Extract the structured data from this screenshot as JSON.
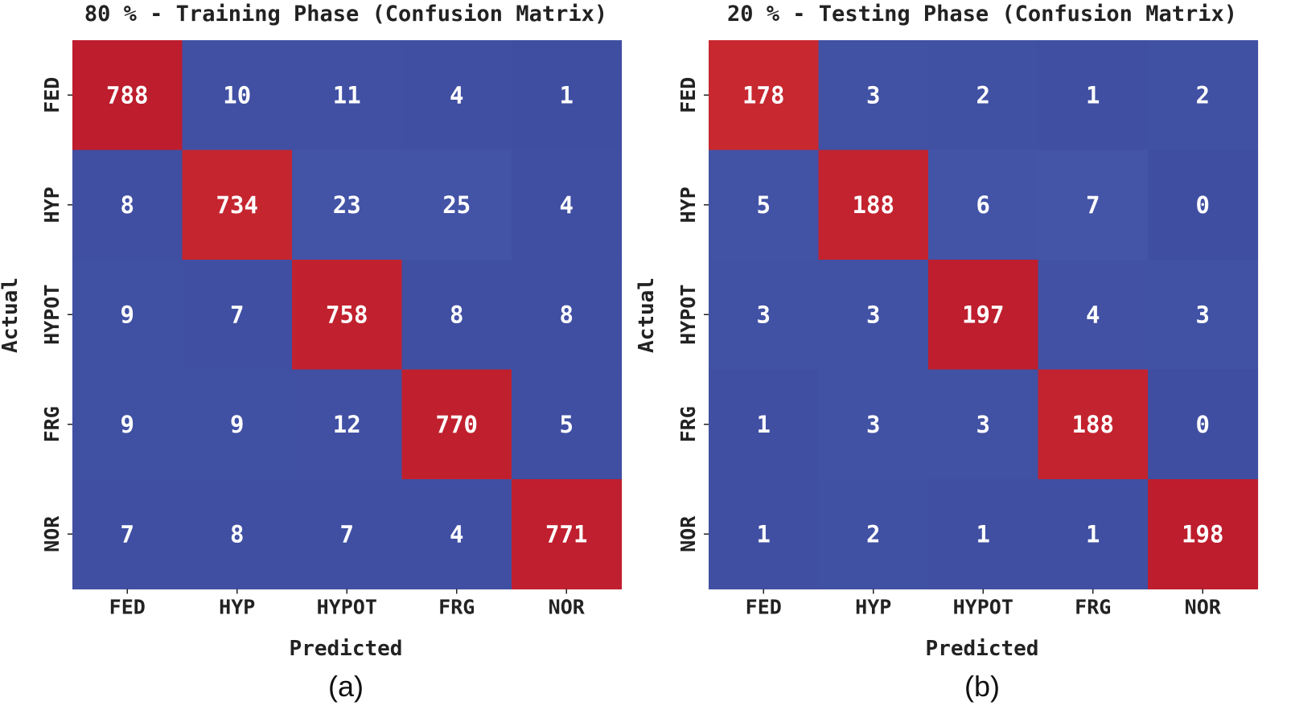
{
  "chart_data": [
    {
      "type": "heatmap",
      "title": "80 % - Training Phase (Confusion Matrix)",
      "xlabel": "Predicted",
      "ylabel": "Actual",
      "x_categories": [
        "FED",
        "HYP",
        "HYPOT",
        "FRG",
        "NOR"
      ],
      "y_categories": [
        "FED",
        "HYP",
        "HYPOT",
        "FRG",
        "NOR"
      ],
      "values": [
        [
          788,
          10,
          11,
          4,
          1
        ],
        [
          8,
          734,
          23,
          25,
          4
        ],
        [
          9,
          7,
          758,
          8,
          8
        ],
        [
          9,
          9,
          12,
          770,
          5
        ],
        [
          7,
          8,
          7,
          4,
          771
        ]
      ],
      "colormap": "coolwarm",
      "value_range": [
        1,
        788
      ],
      "caption": "(a)"
    },
    {
      "type": "heatmap",
      "title": "20 % - Testing Phase (Confusion Matrix)",
      "xlabel": "Predicted",
      "ylabel": "Actual",
      "x_categories": [
        "FED",
        "HYP",
        "HYPOT",
        "FRG",
        "NOR"
      ],
      "y_categories": [
        "FED",
        "HYP",
        "HYPOT",
        "FRG",
        "NOR"
      ],
      "values": [
        [
          178,
          3,
          2,
          1,
          2
        ],
        [
          5,
          188,
          6,
          7,
          0
        ],
        [
          3,
          3,
          197,
          4,
          3
        ],
        [
          1,
          3,
          3,
          188,
          0
        ],
        [
          1,
          2,
          1,
          1,
          198
        ]
      ],
      "colormap": "coolwarm",
      "value_range": [
        0,
        198
      ],
      "caption": "(b)"
    }
  ],
  "colors": {
    "low": "#3f4ea1",
    "high": "#bd1d2d",
    "cell_text": "#ffffff",
    "text": "#222222"
  }
}
